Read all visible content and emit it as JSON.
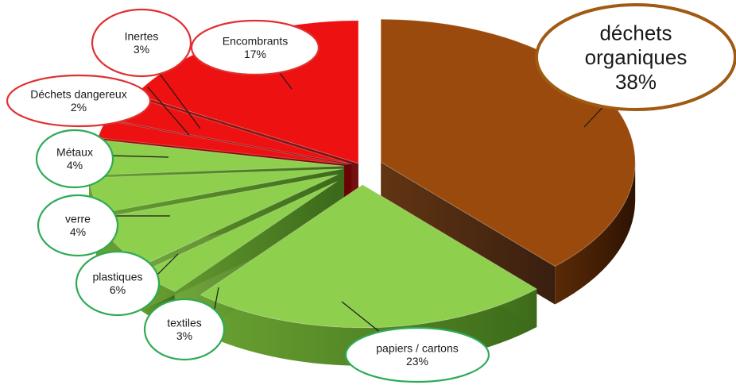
{
  "chart_data": {
    "type": "pie",
    "title": "",
    "slices": [
      {
        "label": "déchets organiques",
        "value": 38,
        "value_label": "38%",
        "color": "#9a4a0c",
        "ring_color": "#a05a14"
      },
      {
        "label": "papiers / cartons",
        "value": 23,
        "value_label": "23%",
        "color": "#8fcf4e",
        "ring_color": "#2eaa55"
      },
      {
        "label": "textiles",
        "value": 3,
        "value_label": "3%",
        "color": "#8fcf4e",
        "ring_color": "#2eaa55"
      },
      {
        "label": "plastiques",
        "value": 6,
        "value_label": "6%",
        "color": "#8fcf4e",
        "ring_color": "#2eaa55"
      },
      {
        "label": "verre",
        "value": 4,
        "value_label": "4%",
        "color": "#8fcf4e",
        "ring_color": "#2eaa55"
      },
      {
        "label": "Métaux",
        "value": 4,
        "value_label": "4%",
        "color": "#8fcf4e",
        "ring_color": "#2eaa55"
      },
      {
        "label": "Déchets dangereux",
        "value": 2,
        "value_label": "2%",
        "color": "#ee1111",
        "ring_color": "#e03030"
      },
      {
        "label": "Inertes",
        "value": 3,
        "value_label": "3%",
        "color": "#ee1111",
        "ring_color": "#e03030"
      },
      {
        "label": "Encombrants",
        "value": 17,
        "value_label": "17%",
        "color": "#ee1111",
        "ring_color": "#e03030"
      }
    ],
    "grid": false,
    "legend": "none"
  }
}
